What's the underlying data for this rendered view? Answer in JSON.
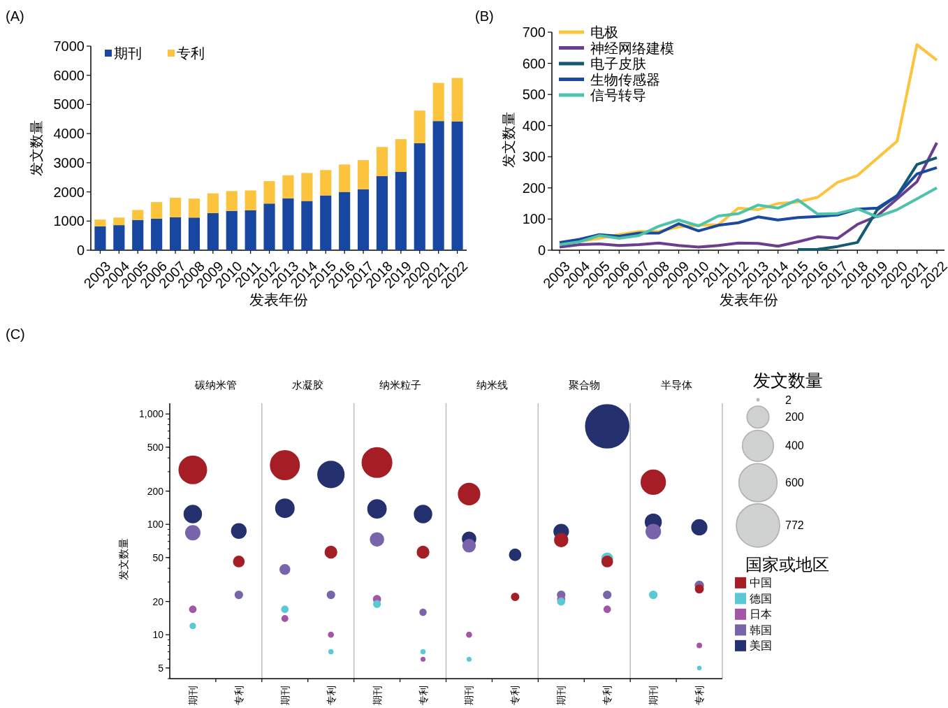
{
  "chart_data": [
    {
      "type": "bar",
      "title": "(A)",
      "stacked": true,
      "xlabel": "发表年份",
      "ylabel": "发文数量",
      "legend": "top left",
      "ylim": [
        0,
        7000
      ],
      "yticks": [
        0,
        1000,
        2000,
        3000,
        4000,
        5000,
        6000,
        7000
      ],
      "categories": [
        "2003",
        "2004",
        "2005",
        "2006",
        "2007",
        "2008",
        "2009",
        "2010",
        "2011",
        "2012",
        "2013",
        "2014",
        "2015",
        "2016",
        "2017",
        "2018",
        "2019",
        "2020",
        "2021",
        "2022"
      ],
      "series": [
        {
          "name": "期刊",
          "color": "#1747a0",
          "values": [
            820,
            860,
            1040,
            1080,
            1130,
            1120,
            1270,
            1350,
            1370,
            1600,
            1780,
            1690,
            1880,
            2000,
            2090,
            2540,
            2690,
            3670,
            4430,
            4420
          ]
        },
        {
          "name": "专利",
          "color": "#fcc43d",
          "values": [
            230,
            260,
            340,
            570,
            670,
            650,
            680,
            680,
            680,
            770,
            790,
            960,
            870,
            940,
            1000,
            1000,
            1120,
            1120,
            1310,
            1490
          ]
        }
      ]
    },
    {
      "type": "line",
      "title": "(B)",
      "xlabel": "发表年份",
      "ylabel": "发文数量",
      "legend": "top left",
      "ylim": [
        0,
        700
      ],
      "yticks": [
        0,
        100,
        200,
        300,
        400,
        500,
        600,
        700
      ],
      "categories": [
        "2003",
        "2004",
        "2005",
        "2006",
        "2007",
        "2008",
        "2009",
        "2010",
        "2011",
        "2012",
        "2013",
        "2014",
        "2015",
        "2016",
        "2017",
        "2018",
        "2019",
        "2020",
        "2021",
        "2022"
      ],
      "series": [
        {
          "name": "电极",
          "color": "#fcc33d",
          "values": [
            20,
            28,
            38,
            50,
            60,
            60,
            75,
            80,
            82,
            135,
            130,
            150,
            155,
            170,
            218,
            240,
            295,
            350,
            660,
            610
          ]
        },
        {
          "name": "神经网络建模",
          "color": "#6a3d8e",
          "values": [
            10,
            18,
            20,
            15,
            18,
            23,
            15,
            10,
            15,
            23,
            22,
            13,
            27,
            43,
            38,
            83,
            110,
            165,
            220,
            345
          ]
        },
        {
          "name": "电子皮肤",
          "color": "#145a72",
          "values": [
            null,
            null,
            null,
            null,
            null,
            null,
            null,
            null,
            null,
            null,
            null,
            null,
            2,
            3,
            12,
            25,
            130,
            175,
            275,
            297
          ]
        },
        {
          "name": "生物传感器",
          "color": "#1a4aa0",
          "values": [
            25,
            35,
            50,
            45,
            55,
            55,
            85,
            62,
            80,
            88,
            107,
            97,
            105,
            108,
            113,
            132,
            135,
            175,
            245,
            265
          ]
        },
        {
          "name": "信号转导",
          "color": "#4dc3ab",
          "values": [
            18,
            27,
            47,
            38,
            47,
            77,
            97,
            78,
            110,
            117,
            145,
            135,
            162,
            116,
            118,
            133,
            107,
            130,
            165,
            200
          ]
        }
      ]
    },
    {
      "type": "bubble",
      "ylabel": "发文数量",
      "annotations": [
        "(C)",
        "碳纳米管",
        "水凝胶",
        "纳米粒子",
        "纳米线",
        "聚合物",
        "半导体",
        "发文数量"
      ],
      "log": true,
      "ylim": [
        4,
        1250
      ],
      "yticks": [
        5,
        10,
        20,
        50,
        100,
        200,
        500,
        {
          "value": 1000,
          "label": "1,000"
        }
      ],
      "size_legend": [
        2,
        200,
        400,
        600,
        772
      ],
      "legend": "right",
      "legend_title": "国家或地区",
      "categories": [
        "期刊",
        "专利",
        "期刊",
        "专利",
        "期刊",
        "专利",
        "期刊",
        "专利",
        "期刊",
        "专利",
        "期刊",
        "专利"
      ],
      "series": [
        {
          "name": "中国",
          "color": "#a61e25",
          "values": [
            312,
            46,
            344,
            56,
            363,
            56,
            188,
            22,
            72,
            46,
            241,
            26
          ],
          "sizes": [
            312,
            46,
            344,
            56,
            363,
            56,
            188,
            22,
            72,
            46,
            241,
            26
          ]
        },
        {
          "name": "德国",
          "color": "#5bc8d6",
          "values": [
            12,
            null,
            17,
            7,
            19,
            7,
            6,
            null,
            20,
            49,
            23,
            5
          ],
          "sizes": [
            12,
            null,
            17,
            7,
            19,
            7,
            6,
            null,
            20,
            49,
            23,
            5
          ]
        },
        {
          "name": "日本",
          "color": "#a356a6",
          "values": [
            17,
            null,
            14,
            10,
            21,
            6,
            10,
            null,
            21,
            17,
            null,
            8
          ],
          "sizes": [
            17,
            null,
            14,
            10,
            21,
            6,
            10,
            null,
            21,
            17,
            null,
            8
          ]
        },
        {
          "name": "韩国",
          "color": "#7964ac",
          "values": [
            84,
            23,
            39,
            23,
            73,
            16,
            64,
            null,
            23,
            23,
            86,
            28
          ],
          "sizes": [
            84,
            23,
            39,
            23,
            73,
            16,
            64,
            null,
            23,
            23,
            86,
            28
          ]
        },
        {
          "name": "美国",
          "color": "#24316e",
          "values": [
            124,
            87,
            140,
            283,
            138,
            124,
            74,
            53,
            86,
            772,
            105,
            94
          ],
          "sizes": [
            124,
            87,
            140,
            283,
            138,
            124,
            74,
            53,
            86,
            772,
            105,
            94
          ]
        }
      ]
    }
  ]
}
